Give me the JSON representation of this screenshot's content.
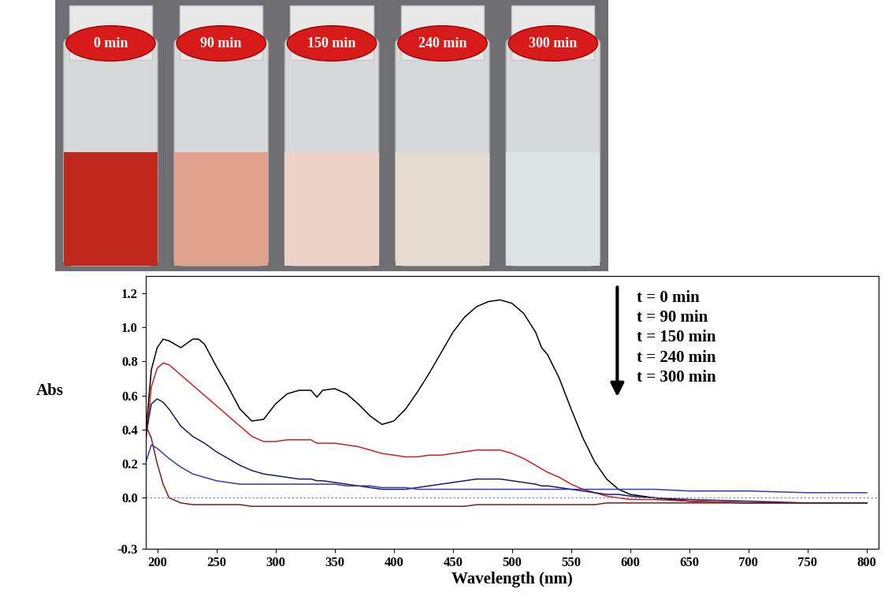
{
  "chart_data": {
    "type": "line",
    "x_label": "Wavelength (nm)",
    "y_label": "Abs",
    "photo_labels": [
      "0 min",
      "90 min",
      "150 min",
      "240 min",
      "300 min"
    ],
    "reference_line": 0.0,
    "xlim": [
      190,
      810
    ],
    "ylim": [
      -0.3,
      1.3
    ],
    "xticks": [
      200,
      250,
      300,
      350,
      400,
      450,
      500,
      550,
      600,
      650,
      700,
      750,
      800
    ],
    "yticks": [
      -0.3,
      0.0,
      0.2,
      0.4,
      0.6,
      0.8,
      1.0,
      1.2
    ],
    "x": [
      190,
      195,
      200,
      205,
      210,
      220,
      230,
      235,
      240,
      250,
      260,
      270,
      280,
      290,
      300,
      310,
      320,
      330,
      335,
      340,
      350,
      360,
      370,
      380,
      390,
      400,
      410,
      420,
      430,
      440,
      450,
      460,
      470,
      480,
      490,
      500,
      510,
      520,
      525,
      530,
      540,
      550,
      560,
      570,
      580,
      590,
      600,
      620,
      650,
      700,
      750,
      800
    ],
    "series": [
      {
        "name": "t = 0 min",
        "color": "#000000",
        "values": [
          0.35,
          0.75,
          0.88,
          0.93,
          0.92,
          0.88,
          0.93,
          0.93,
          0.9,
          0.77,
          0.65,
          0.52,
          0.45,
          0.46,
          0.55,
          0.61,
          0.63,
          0.63,
          0.59,
          0.63,
          0.64,
          0.61,
          0.55,
          0.48,
          0.43,
          0.45,
          0.52,
          0.62,
          0.73,
          0.85,
          0.97,
          1.06,
          1.12,
          1.15,
          1.16,
          1.14,
          1.08,
          0.97,
          0.88,
          0.84,
          0.7,
          0.52,
          0.35,
          0.21,
          0.11,
          0.05,
          0.02,
          0.0,
          -0.02,
          -0.03,
          -0.03,
          -0.03
        ]
      },
      {
        "name": "t = 90 min",
        "color": "#cc2222",
        "values": [
          0.3,
          0.65,
          0.76,
          0.79,
          0.78,
          0.72,
          0.66,
          0.63,
          0.6,
          0.54,
          0.48,
          0.42,
          0.36,
          0.33,
          0.33,
          0.34,
          0.34,
          0.34,
          0.32,
          0.32,
          0.32,
          0.31,
          0.3,
          0.28,
          0.26,
          0.25,
          0.24,
          0.24,
          0.25,
          0.25,
          0.26,
          0.27,
          0.28,
          0.28,
          0.28,
          0.26,
          0.23,
          0.19,
          0.17,
          0.15,
          0.12,
          0.08,
          0.05,
          0.03,
          0.01,
          0.0,
          -0.01,
          -0.01,
          -0.02,
          -0.03,
          -0.03,
          -0.03
        ]
      },
      {
        "name": "t = 150 min",
        "color": "#1a1a6e",
        "values": [
          0.35,
          0.55,
          0.58,
          0.56,
          0.52,
          0.42,
          0.36,
          0.34,
          0.32,
          0.27,
          0.23,
          0.19,
          0.16,
          0.14,
          0.13,
          0.12,
          0.11,
          0.11,
          0.1,
          0.1,
          0.09,
          0.08,
          0.07,
          0.06,
          0.05,
          0.05,
          0.05,
          0.06,
          0.07,
          0.08,
          0.09,
          0.1,
          0.11,
          0.11,
          0.11,
          0.1,
          0.09,
          0.08,
          0.07,
          0.07,
          0.06,
          0.05,
          0.04,
          0.03,
          0.02,
          0.02,
          0.01,
          0.0,
          -0.01,
          -0.02,
          -0.03,
          -0.03
        ]
      },
      {
        "name": "t = 240 min",
        "color": "#3a3ab0",
        "values": [
          0.2,
          0.31,
          0.29,
          0.26,
          0.23,
          0.18,
          0.14,
          0.13,
          0.12,
          0.1,
          0.09,
          0.08,
          0.08,
          0.08,
          0.08,
          0.08,
          0.08,
          0.08,
          0.08,
          0.08,
          0.08,
          0.07,
          0.07,
          0.07,
          0.06,
          0.06,
          0.06,
          0.05,
          0.05,
          0.05,
          0.05,
          0.05,
          0.05,
          0.05,
          0.05,
          0.05,
          0.05,
          0.05,
          0.05,
          0.05,
          0.05,
          0.05,
          0.05,
          0.05,
          0.05,
          0.05,
          0.05,
          0.05,
          0.04,
          0.04,
          0.03,
          0.03
        ]
      },
      {
        "name": "t = 300 min",
        "color": "#7a1f1f",
        "values": [
          0.43,
          0.35,
          0.2,
          0.08,
          0.0,
          -0.03,
          -0.04,
          -0.04,
          -0.04,
          -0.04,
          -0.04,
          -0.04,
          -0.05,
          -0.05,
          -0.05,
          -0.05,
          -0.05,
          -0.05,
          -0.05,
          -0.05,
          -0.05,
          -0.05,
          -0.05,
          -0.05,
          -0.05,
          -0.05,
          -0.05,
          -0.05,
          -0.05,
          -0.05,
          -0.05,
          -0.05,
          -0.04,
          -0.04,
          -0.04,
          -0.04,
          -0.04,
          -0.04,
          -0.04,
          -0.04,
          -0.04,
          -0.04,
          -0.04,
          -0.04,
          -0.03,
          -0.03,
          -0.03,
          -0.03,
          -0.03,
          -0.03,
          -0.03,
          -0.03
        ]
      }
    ]
  }
}
